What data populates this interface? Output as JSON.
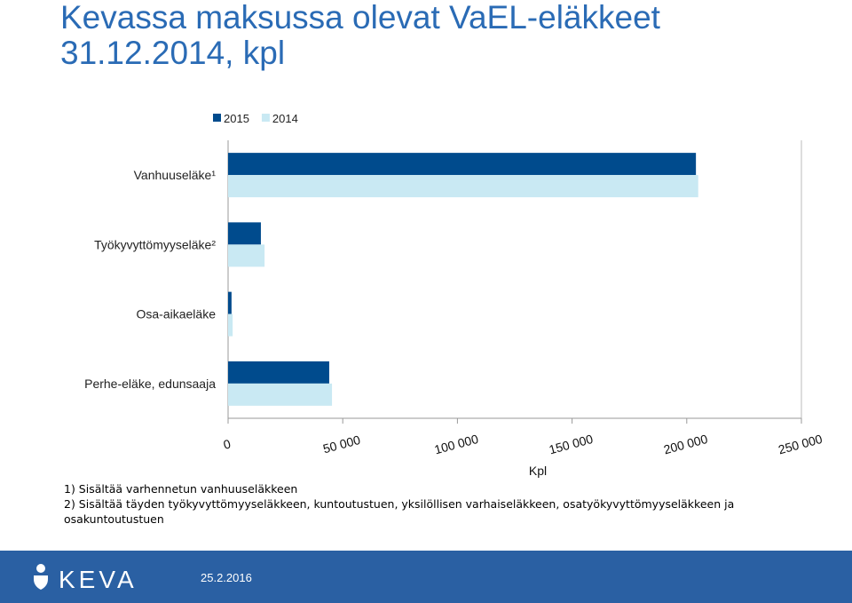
{
  "chart_data": {
    "type": "bar",
    "orientation": "horizontal",
    "title": "Kevassa maksussa olevat VaEL-eläkkeet 31.12.2014, kpl",
    "title_lines": [
      "Kevassa maksussa olevat VaEL-eläkkeet",
      "31.12.2014, kpl"
    ],
    "categories": [
      "Vanhuuseläke¹",
      "Työkyvyttömyyseläke²",
      "Osa-aikaeläke",
      "Perhe-eläke, edunsaaja"
    ],
    "series": [
      {
        "name": "2015",
        "color": "#004b8d",
        "values": [
          204000,
          14300,
          1500,
          44100
        ]
      },
      {
        "name": "2014",
        "color": "#c9e9f3",
        "values": [
          205000,
          15900,
          2000,
          45300
        ]
      }
    ],
    "xlim": [
      0,
      250000
    ],
    "xticks": [
      0,
      {
        "value": 50000,
        "label": "50 000"
      },
      {
        "value": 100000,
        "label": "100 000"
      },
      {
        "value": 150000,
        "label": "150 000"
      },
      {
        "value": 200000,
        "label": "200 000"
      },
      {
        "value": 250000,
        "label": "250 000"
      }
    ],
    "xlabel": "Kpl",
    "legend": "top",
    "grid": false,
    "footnotes": [
      "1) Sisältää varhennetun vanhuuseläkkeen",
      "2) Sisältää täyden työkyvyttömyyseläkkeen, kuntoutustuen, yksilöllisen varhaiseläkkeen, osatyökyvyttömyyseläkkeen ja",
      "osakuntoutustuen"
    ]
  },
  "footer": {
    "logo": "KEVA",
    "date": "25.2.2016"
  }
}
